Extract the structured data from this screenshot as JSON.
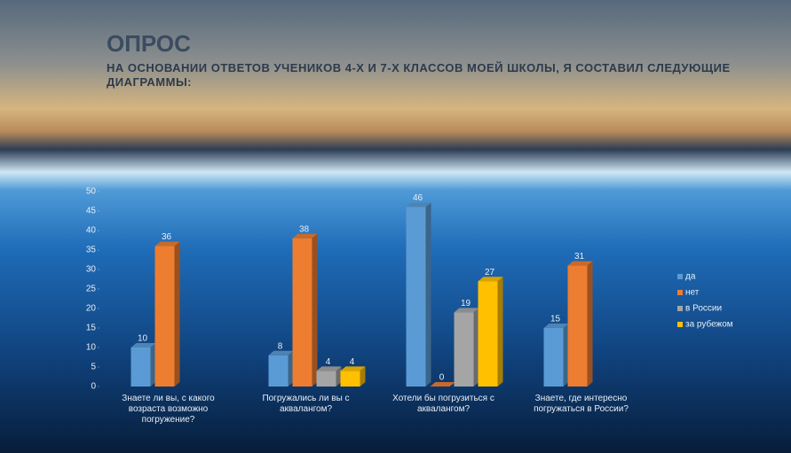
{
  "chart_data": {
    "type": "bar",
    "title": "ОПРОС",
    "subtitle": "НА ОСНОВАНИИ ОТВЕТОВ УЧЕНИКОВ 4-Х И 7-Х КЛАССОВ МОЕЙ ШКОЛЫ, Я СОСТАВИЛ СЛЕДУЮЩИЕ ДИАГРАММЫ:",
    "categories": [
      "Знаете ли вы, с какого возраста возможно погружение?",
      "Погружались ли вы с аквалангом?",
      "Хотели бы погрузиться с аквалангом?",
      "Знаете, где интересно погружаться в России?"
    ],
    "series": [
      {
        "name": "да",
        "color": "#5b9bd5",
        "values": [
          10,
          8,
          46,
          15
        ]
      },
      {
        "name": "нет",
        "color": "#ed7d31",
        "values": [
          36,
          38,
          0,
          31
        ]
      },
      {
        "name": "в России",
        "color": "#a5a5a5",
        "values": [
          null,
          4,
          19,
          null
        ]
      },
      {
        "name": "за рубежом",
        "color": "#ffc000",
        "values": [
          null,
          4,
          27,
          null
        ]
      }
    ],
    "ylim": [
      0,
      50
    ],
    "yticks": [
      0,
      5,
      10,
      15,
      20,
      25,
      30,
      35,
      40,
      45,
      50
    ],
    "legend": "right"
  }
}
